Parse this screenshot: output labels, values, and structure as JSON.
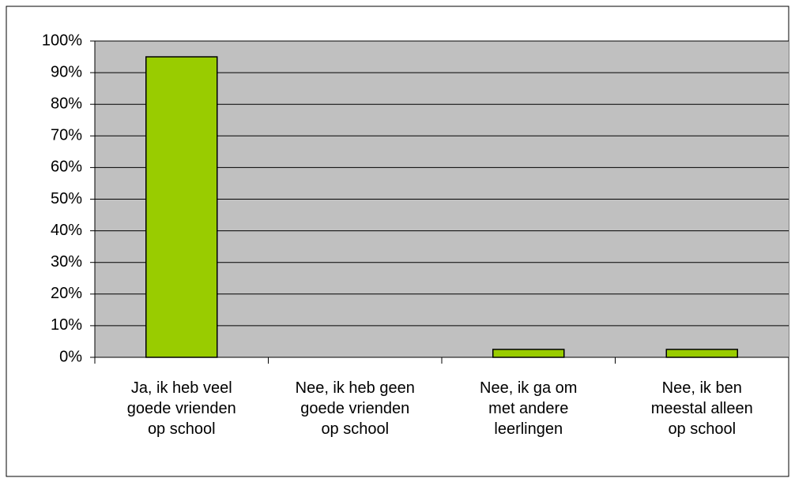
{
  "chart_data": {
    "type": "bar",
    "categories": [
      "Ja, ik heb veel\ngoede vrienden\nop school",
      "Nee, ik heb geen\ngoede vrienden\nop school",
      "Nee, ik ga om\nmet andere\nleerlingen",
      "Nee, ik ben\nmeestal alleen\nop school"
    ],
    "values": [
      95,
      0,
      2.5,
      2.5
    ],
    "color": "#99cc00",
    "ylim": [
      0,
      100
    ],
    "yticks": [
      {
        "value": 0,
        "label": "0%"
      },
      {
        "value": 10,
        "label": "10%"
      },
      {
        "value": 20,
        "label": "20%"
      },
      {
        "value": 30,
        "label": "30%"
      },
      {
        "value": 40,
        "label": "40%"
      },
      {
        "value": 50,
        "label": "50%"
      },
      {
        "value": 60,
        "label": "60%"
      },
      {
        "value": 70,
        "label": "70%"
      },
      {
        "value": 80,
        "label": "80%"
      },
      {
        "value": 90,
        "label": "90%"
      },
      {
        "value": 100,
        "label": "100%"
      }
    ],
    "grid": true
  }
}
